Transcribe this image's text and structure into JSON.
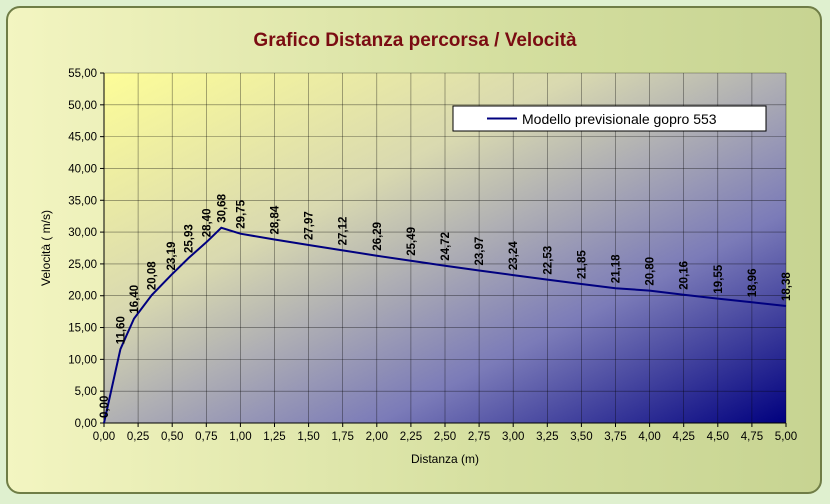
{
  "chart_data": {
    "type": "line",
    "title": "Grafico Distanza percorsa / Velocità",
    "xlabel": "Distanza (m)",
    "ylabel": "Velocità  ( m/s)",
    "xlim": [
      0,
      5
    ],
    "ylim": [
      0,
      55
    ],
    "x_ticks": [
      "0,00",
      "0,25",
      "0,50",
      "0,75",
      "1,00",
      "1,25",
      "1,50",
      "1,75",
      "2,00",
      "2,25",
      "2,50",
      "2,75",
      "3,00",
      "3,25",
      "3,50",
      "3,75",
      "4,00",
      "4,25",
      "4,50",
      "4,75",
      "5,00"
    ],
    "y_ticks": [
      "0,00",
      "5,00",
      "10,00",
      "15,00",
      "20,00",
      "25,00",
      "30,00",
      "35,00",
      "40,00",
      "45,00",
      "50,00",
      "55,00"
    ],
    "grid": true,
    "legend_position": "top-right",
    "line_color": "#00007f",
    "series": [
      {
        "name": "Modello previsionale gopro 553",
        "x": [
          0,
          0.12,
          0.22,
          0.35,
          0.49,
          0.62,
          0.75,
          0.86,
          1.0,
          1.25,
          1.5,
          1.75,
          2.0,
          2.25,
          2.5,
          2.75,
          3.0,
          3.25,
          3.5,
          3.75,
          4.0,
          4.25,
          4.5,
          4.75,
          5.0
        ],
        "values": [
          0.0,
          11.6,
          16.4,
          20.08,
          23.19,
          25.93,
          28.4,
          30.68,
          29.75,
          28.84,
          27.97,
          27.12,
          26.29,
          25.49,
          24.72,
          23.97,
          23.24,
          22.53,
          21.85,
          21.18,
          20.8,
          20.16,
          19.55,
          18.96,
          18.38
        ],
        "labels": [
          "0,00",
          "11,60",
          "16,40",
          "20,08",
          "23,19",
          "25,93",
          "28,40",
          "30,68",
          "29,75",
          "28,84",
          "27,97",
          "27,12",
          "26,29",
          "25,49",
          "24,72",
          "23,97",
          "23,24",
          "22,53",
          "21,85",
          "21,18",
          "20,80",
          "20,16",
          "19,55",
          "18,96",
          "18,38"
        ]
      }
    ]
  }
}
